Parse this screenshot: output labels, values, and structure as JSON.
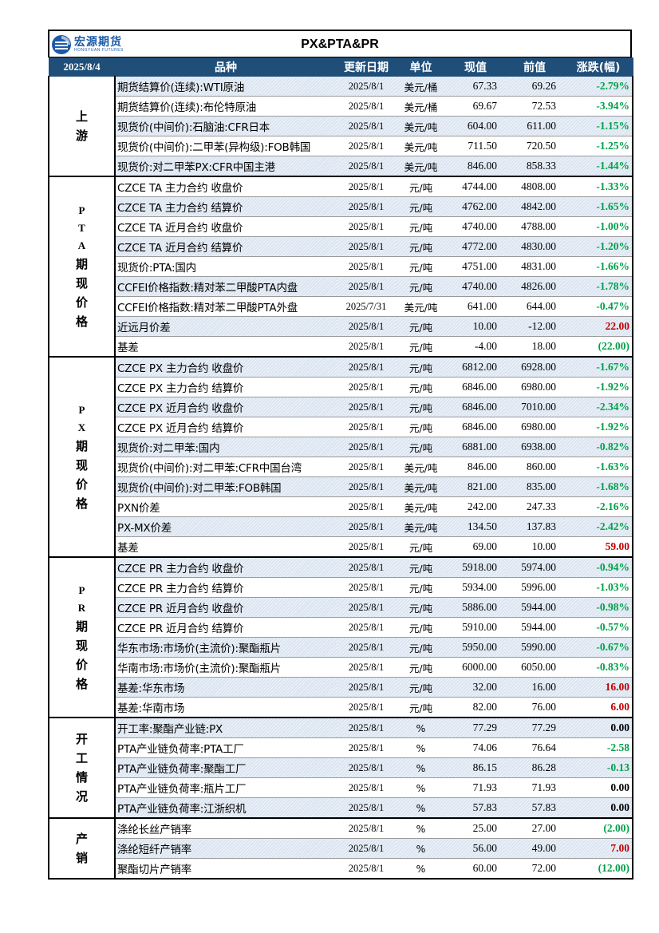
{
  "header": {
    "logo_cn": "宏源期货",
    "logo_en": "HONGYUAN FUTURES",
    "title": "PX&PTA&PR"
  },
  "columns": {
    "date": "2025/8/4",
    "variety": "品种",
    "update_date": "更新日期",
    "unit": "单位",
    "current": "现值",
    "previous": "前值",
    "change": "涨跌(幅)"
  },
  "colors": {
    "header_bg": "#1f4e79",
    "shade": "#dbe5f1",
    "up": "#c00000",
    "down": "#00a04a"
  },
  "sections": [
    {
      "label": [
        "上",
        "游"
      ],
      "rows": [
        {
          "name": "期货结算价(连续):WTI原油",
          "date": "2025/8/1",
          "unit": "美元/桶",
          "current": "67.33",
          "previous": "69.26",
          "change": "-2.79%",
          "color": "green",
          "shade": true
        },
        {
          "name": "期货结算价(连续):布伦特原油",
          "date": "2025/8/1",
          "unit": "美元/桶",
          "current": "69.67",
          "previous": "72.53",
          "change": "-3.94%",
          "color": "green",
          "shade": false
        },
        {
          "name": "现货价(中间价):石脑油:CFR日本",
          "date": "2025/8/1",
          "unit": "美元/吨",
          "current": "604.00",
          "previous": "611.00",
          "change": "-1.15%",
          "color": "green",
          "shade": true
        },
        {
          "name": "现货价(中间价):二甲苯(异构级):FOB韩国",
          "date": "2025/8/1",
          "unit": "美元/吨",
          "current": "711.50",
          "previous": "720.50",
          "change": "-1.25%",
          "color": "green",
          "shade": false
        },
        {
          "name": "现货价:对二甲苯PX:CFR中国主港",
          "date": "2025/8/1",
          "unit": "美元/吨",
          "current": "846.00",
          "previous": "858.33",
          "change": "-1.44%",
          "color": "green",
          "shade": true
        }
      ]
    },
    {
      "label": [
        "P",
        "T",
        "A",
        "期",
        "现",
        "价",
        "格"
      ],
      "rows": [
        {
          "name": "CZCE TA 主力合约 收盘价",
          "date": "2025/8/1",
          "unit": "元/吨",
          "current": "4744.00",
          "previous": "4808.00",
          "change": "-1.33%",
          "color": "green",
          "shade": false
        },
        {
          "name": "CZCE TA 主力合约 结算价",
          "date": "2025/8/1",
          "unit": "元/吨",
          "current": "4762.00",
          "previous": "4842.00",
          "change": "-1.65%",
          "color": "green",
          "shade": true
        },
        {
          "name": "CZCE TA 近月合约 收盘价",
          "date": "2025/8/1",
          "unit": "元/吨",
          "current": "4740.00",
          "previous": "4788.00",
          "change": "-1.00%",
          "color": "green",
          "shade": false
        },
        {
          "name": "CZCE TA 近月合约 结算价",
          "date": "2025/8/1",
          "unit": "元/吨",
          "current": "4772.00",
          "previous": "4830.00",
          "change": "-1.20%",
          "color": "green",
          "shade": true
        },
        {
          "name": "现货价:PTA:国内",
          "date": "2025/8/1",
          "unit": "元/吨",
          "current": "4751.00",
          "previous": "4831.00",
          "change": "-1.66%",
          "color": "green",
          "shade": false
        },
        {
          "name": "CCFEI价格指数:精对苯二甲酸PTA内盘",
          "date": "2025/8/1",
          "unit": "元/吨",
          "current": "4740.00",
          "previous": "4826.00",
          "change": "-1.78%",
          "color": "green",
          "shade": true
        },
        {
          "name": "CCFEI价格指数:精对苯二甲酸PTA外盘",
          "date": "2025/7/31",
          "unit": "美元/吨",
          "current": "641.00",
          "previous": "644.00",
          "change": "-0.47%",
          "color": "green",
          "shade": false
        },
        {
          "name": "近远月价差",
          "date": "2025/8/1",
          "unit": "元/吨",
          "current": "10.00",
          "previous": "-12.00",
          "change": "22.00",
          "color": "red",
          "shade": true
        },
        {
          "name": "基差",
          "date": "2025/8/1",
          "unit": "元/吨",
          "current": "-4.00",
          "previous": "18.00",
          "change": "(22.00)",
          "color": "green",
          "shade": false
        }
      ]
    },
    {
      "label": [
        "P",
        "X",
        "期",
        "现",
        "价",
        "格"
      ],
      "rows": [
        {
          "name": "CZCE PX 主力合约 收盘价",
          "date": "2025/8/1",
          "unit": "元/吨",
          "current": "6812.00",
          "previous": "6928.00",
          "change": "-1.67%",
          "color": "green",
          "shade": true
        },
        {
          "name": "CZCE PX 主力合约 结算价",
          "date": "2025/8/1",
          "unit": "元/吨",
          "current": "6846.00",
          "previous": "6980.00",
          "change": "-1.92%",
          "color": "green",
          "shade": false
        },
        {
          "name": "CZCE PX 近月合约 收盘价",
          "date": "2025/8/1",
          "unit": "元/吨",
          "current": "6846.00",
          "previous": "7010.00",
          "change": "-2.34%",
          "color": "green",
          "shade": true
        },
        {
          "name": "CZCE PX 近月合约 结算价",
          "date": "2025/8/1",
          "unit": "元/吨",
          "current": "6846.00",
          "previous": "6980.00",
          "change": "-1.92%",
          "color": "green",
          "shade": false
        },
        {
          "name": "现货价:对二甲苯:国内",
          "date": "2025/8/1",
          "unit": "元/吨",
          "current": "6881.00",
          "previous": "6938.00",
          "change": "-0.82%",
          "color": "green",
          "shade": true
        },
        {
          "name": "现货价(中间价):对二甲苯:CFR中国台湾",
          "date": "2025/8/1",
          "unit": "美元/吨",
          "current": "846.00",
          "previous": "860.00",
          "change": "-1.63%",
          "color": "green",
          "shade": false
        },
        {
          "name": "现货价(中间价):对二甲苯:FOB韩国",
          "date": "2025/8/1",
          "unit": "美元/吨",
          "current": "821.00",
          "previous": "835.00",
          "change": "-1.68%",
          "color": "green",
          "shade": true
        },
        {
          "name": "PXN价差",
          "date": "2025/8/1",
          "unit": "美元/吨",
          "current": "242.00",
          "previous": "247.33",
          "change": "-2.16%",
          "color": "green",
          "shade": false
        },
        {
          "name": "PX-MX价差",
          "date": "2025/8/1",
          "unit": "美元/吨",
          "current": "134.50",
          "previous": "137.83",
          "change": "-2.42%",
          "color": "green",
          "shade": true
        },
        {
          "name": "基差",
          "date": "2025/8/1",
          "unit": "元/吨",
          "current": "69.00",
          "previous": "10.00",
          "change": "59.00",
          "color": "red",
          "shade": false
        }
      ]
    },
    {
      "label": [
        "P",
        "R",
        "期",
        "现",
        "价",
        "格"
      ],
      "rows": [
        {
          "name": "CZCE PR 主力合约 收盘价",
          "date": "2025/8/1",
          "unit": "元/吨",
          "current": "5918.00",
          "previous": "5974.00",
          "change": "-0.94%",
          "color": "green",
          "shade": true
        },
        {
          "name": "CZCE PR 主力合约 结算价",
          "date": "2025/8/1",
          "unit": "元/吨",
          "current": "5934.00",
          "previous": "5996.00",
          "change": "-1.03%",
          "color": "green",
          "shade": false
        },
        {
          "name": "CZCE PR 近月合约 收盘价",
          "date": "2025/8/1",
          "unit": "元/吨",
          "current": "5886.00",
          "previous": "5944.00",
          "change": "-0.98%",
          "color": "green",
          "shade": true
        },
        {
          "name": "CZCE PR 近月合约 结算价",
          "date": "2025/8/1",
          "unit": "元/吨",
          "current": "5910.00",
          "previous": "5944.00",
          "change": "-0.57%",
          "color": "green",
          "shade": false
        },
        {
          "name": "华东市场:市场价(主流价):聚酯瓶片",
          "date": "2025/8/1",
          "unit": "元/吨",
          "current": "5950.00",
          "previous": "5990.00",
          "change": "-0.67%",
          "color": "green",
          "shade": true
        },
        {
          "name": "华南市场:市场价(主流价):聚酯瓶片",
          "date": "2025/8/1",
          "unit": "元/吨",
          "current": "6000.00",
          "previous": "6050.00",
          "change": "-0.83%",
          "color": "green",
          "shade": false
        },
        {
          "name": "基差:华东市场",
          "date": "2025/8/1",
          "unit": "元/吨",
          "current": "32.00",
          "previous": "16.00",
          "change": "16.00",
          "color": "red",
          "shade": true
        },
        {
          "name": "基差:华南市场",
          "date": "2025/8/1",
          "unit": "元/吨",
          "current": "82.00",
          "previous": "76.00",
          "change": "6.00",
          "color": "red",
          "shade": false
        }
      ]
    },
    {
      "label": [
        "开",
        "工",
        "情",
        "况"
      ],
      "rows": [
        {
          "name": "开工率:聚酯产业链:PX",
          "date": "2025/8/1",
          "unit": "%",
          "current": "77.29",
          "previous": "77.29",
          "change": "0.00",
          "color": "black",
          "shade": true
        },
        {
          "name": "PTA产业链负荷率:PTA工厂",
          "date": "2025/8/1",
          "unit": "%",
          "current": "74.06",
          "previous": "76.64",
          "change": "-2.58",
          "color": "green",
          "shade": false
        },
        {
          "name": "PTA产业链负荷率:聚酯工厂",
          "date": "2025/8/1",
          "unit": "%",
          "current": "86.15",
          "previous": "86.28",
          "change": "-0.13",
          "color": "green",
          "shade": true
        },
        {
          "name": "PTA产业链负荷率:瓶片工厂",
          "date": "2025/8/1",
          "unit": "%",
          "current": "71.93",
          "previous": "71.93",
          "change": "0.00",
          "color": "black",
          "shade": false
        },
        {
          "name": "PTA产业链负荷率:江浙织机",
          "date": "2025/8/1",
          "unit": "%",
          "current": "57.83",
          "previous": "57.83",
          "change": "0.00",
          "color": "black",
          "shade": true
        }
      ]
    },
    {
      "label": [
        "产",
        "销"
      ],
      "rows": [
        {
          "name": "涤纶长丝产销率",
          "date": "2025/8/1",
          "unit": "%",
          "current": "25.00",
          "previous": "27.00",
          "change": "(2.00)",
          "color": "green",
          "shade": false
        },
        {
          "name": "涤纶短纤产销率",
          "date": "2025/8/1",
          "unit": "%",
          "current": "56.00",
          "previous": "49.00",
          "change": "7.00",
          "color": "red",
          "shade": true
        },
        {
          "name": "聚酯切片产销率",
          "date": "2025/8/1",
          "unit": "%",
          "current": "60.00",
          "previous": "72.00",
          "change": "(12.00)",
          "color": "green",
          "shade": false
        }
      ]
    }
  ]
}
